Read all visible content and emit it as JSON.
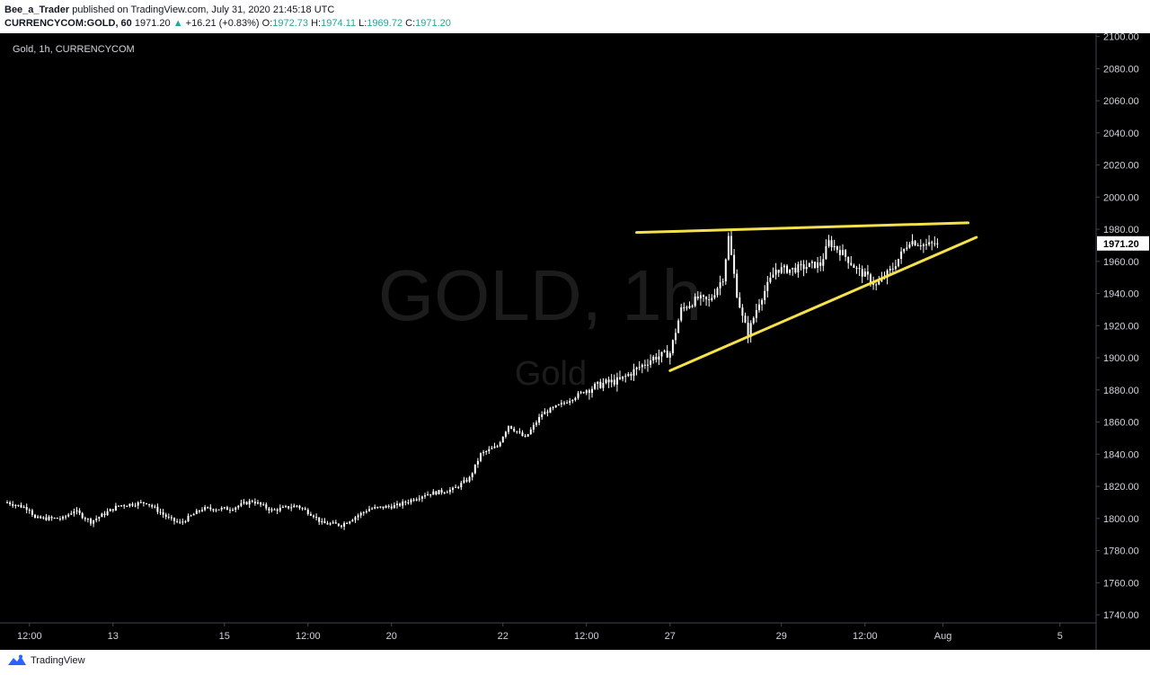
{
  "header": {
    "publisher": "Bee_a_Trader",
    "published_text": "published on TradingView.com, July 31, 2020 21:45:18 UTC",
    "symbol": "CURRENCYCOM:GOLD, 60",
    "last": "1971.20",
    "change_arrow": "▲",
    "change": "+16.21 (+0.83%)",
    "o_label": "O:",
    "o_value": "1972.73",
    "h_label": "H:",
    "h_value": "1974.11",
    "l_label": "L:",
    "l_value": "1969.72",
    "c_label": "C:",
    "c_value": "1971.20"
  },
  "legend": "Gold, 1h, CURRENCYCOM",
  "watermark": {
    "big": "GOLD, 1h",
    "small": "Gold"
  },
  "footer": {
    "brand": "TradingView"
  },
  "colors": {
    "background": "#000000",
    "candle": "#ffffff",
    "trendline": "#f5e14b",
    "axis_text": "#d1d4dc",
    "watermark": "#2a2a2a",
    "positive": "#26a69a"
  },
  "chart_data": {
    "type": "candlestick",
    "interval": "1h",
    "ylim": [
      1735,
      2102
    ],
    "y_ticks": [
      1740,
      1760,
      1780,
      1800,
      1820,
      1840,
      1860,
      1880,
      1900,
      1920,
      1940,
      1960,
      1980,
      2000,
      2020,
      2040,
      2060,
      2080,
      2100
    ],
    "y_tick_labels": [
      "1740.00",
      "1760.00",
      "1780.00",
      "1800.00",
      "1820.00",
      "1840.00",
      "1860.00",
      "1880.00",
      "1900.00",
      "1920.00",
      "1940.00",
      "1960.00",
      "1980.00",
      "2000.00",
      "2020.00",
      "2040.00",
      "2060.00",
      "2080.00",
      "2100.00"
    ],
    "last_price_label": "1971.20",
    "last_price": 1971.2,
    "x_ticks": [
      {
        "i": 8,
        "label": "12:00"
      },
      {
        "i": 38,
        "label": "13"
      },
      {
        "i": 78,
        "label": "15"
      },
      {
        "i": 108,
        "label": "12:00"
      },
      {
        "i": 138,
        "label": "20"
      },
      {
        "i": 178,
        "label": "22"
      },
      {
        "i": 208,
        "label": "12:00"
      },
      {
        "i": 238,
        "label": "27"
      },
      {
        "i": 278,
        "label": "29"
      },
      {
        "i": 308,
        "label": "12:00"
      },
      {
        "i": 336,
        "label": "Aug"
      },
      {
        "i": 378,
        "label": "5"
      }
    ],
    "anchors": [
      [
        0,
        1810
      ],
      [
        8,
        1806
      ],
      [
        10,
        1800
      ],
      [
        20,
        1800
      ],
      [
        24,
        1805
      ],
      [
        30,
        1798
      ],
      [
        40,
        1808
      ],
      [
        50,
        1810
      ],
      [
        58,
        1800
      ],
      [
        62,
        1797
      ],
      [
        70,
        1806
      ],
      [
        80,
        1806
      ],
      [
        88,
        1811
      ],
      [
        95,
        1805
      ],
      [
        104,
        1808
      ],
      [
        110,
        1802
      ],
      [
        113,
        1797
      ],
      [
        120,
        1796
      ],
      [
        130,
        1806
      ],
      [
        140,
        1808
      ],
      [
        150,
        1815
      ],
      [
        160,
        1818
      ],
      [
        166,
        1825
      ],
      [
        170,
        1840
      ],
      [
        176,
        1845
      ],
      [
        180,
        1858
      ],
      [
        186,
        1850
      ],
      [
        192,
        1865
      ],
      [
        200,
        1872
      ],
      [
        208,
        1880
      ],
      [
        214,
        1884
      ],
      [
        220,
        1886
      ],
      [
        226,
        1893
      ],
      [
        232,
        1900
      ],
      [
        238,
        1903
      ],
      [
        242,
        1930
      ],
      [
        248,
        1937
      ],
      [
        252,
        1935
      ],
      [
        257,
        1950
      ],
      [
        259,
        1975
      ],
      [
        262,
        1940
      ],
      [
        264,
        1925
      ],
      [
        266,
        1915
      ],
      [
        270,
        1935
      ],
      [
        276,
        1955
      ],
      [
        282,
        1955
      ],
      [
        290,
        1958
      ],
      [
        292,
        1958
      ],
      [
        295,
        1972
      ],
      [
        300,
        1965
      ],
      [
        305,
        1955
      ],
      [
        309,
        1950
      ],
      [
        312,
        1945
      ],
      [
        318,
        1956
      ],
      [
        324,
        1973
      ],
      [
        330,
        1970
      ],
      [
        334,
        1971.2
      ]
    ],
    "trendlines": [
      {
        "name": "resistance",
        "from": [
          226,
          1978
        ],
        "to": [
          345,
          1984
        ]
      },
      {
        "name": "support",
        "from": [
          238,
          1892
        ],
        "to": [
          348,
          1975
        ]
      }
    ]
  }
}
